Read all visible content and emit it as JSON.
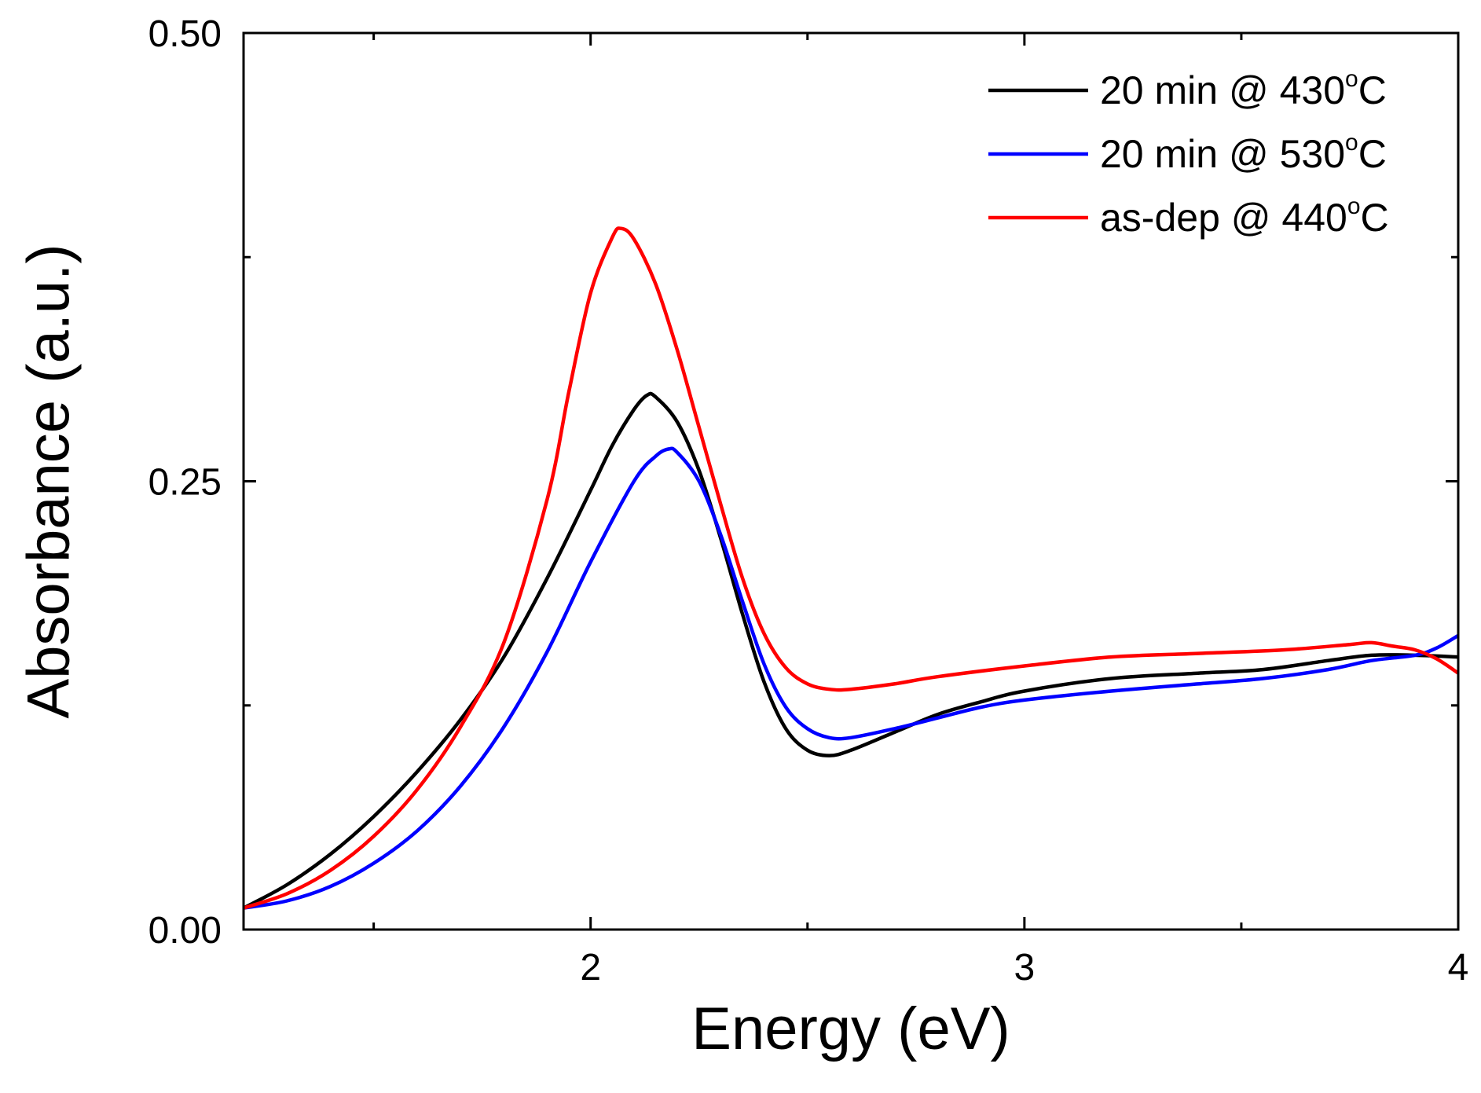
{
  "chart_data": {
    "type": "line",
    "title": "",
    "xlabel": "Energy (eV)",
    "ylabel": "Absorbance (a.u.)",
    "xlim": [
      1.2,
      4.0
    ],
    "ylim": [
      0.0,
      0.5
    ],
    "x_ticks": [
      2,
      3,
      4
    ],
    "x_tick_labels": [
      "2",
      "3",
      "4"
    ],
    "y_ticks": [
      0.0,
      0.25,
      0.5
    ],
    "y_tick_labels": [
      "0.00",
      "0.25",
      "0.50"
    ],
    "grid": false,
    "legend_position": "top-right",
    "series": [
      {
        "name_prefix": "20 min @ 430",
        "name_degree": "o",
        "name_unit": "C",
        "color": "#000000",
        "x": [
          1.2,
          1.3,
          1.4,
          1.5,
          1.6,
          1.7,
          1.8,
          1.9,
          2.0,
          2.05,
          2.1,
          2.13,
          2.15,
          2.2,
          2.25,
          2.3,
          2.35,
          2.4,
          2.45,
          2.5,
          2.55,
          2.6,
          2.7,
          2.8,
          2.9,
          3.0,
          3.2,
          3.4,
          3.55,
          3.7,
          3.8,
          3.9,
          4.0
        ],
        "y": [
          0.012,
          0.025,
          0.042,
          0.063,
          0.088,
          0.117,
          0.152,
          0.196,
          0.245,
          0.27,
          0.29,
          0.298,
          0.297,
          0.283,
          0.256,
          0.218,
          0.176,
          0.138,
          0.112,
          0.1,
          0.097,
          0.1,
          0.11,
          0.12,
          0.127,
          0.133,
          0.14,
          0.143,
          0.145,
          0.15,
          0.153,
          0.153,
          0.152
        ]
      },
      {
        "name_prefix": "20 min @ 530",
        "name_degree": "o",
        "name_unit": "C",
        "color": "#0000ff",
        "x": [
          1.2,
          1.3,
          1.4,
          1.5,
          1.6,
          1.7,
          1.8,
          1.9,
          2.0,
          2.1,
          2.15,
          2.18,
          2.2,
          2.25,
          2.3,
          2.35,
          2.4,
          2.45,
          2.5,
          2.55,
          2.6,
          2.7,
          2.8,
          2.9,
          3.0,
          3.2,
          3.4,
          3.55,
          3.7,
          3.8,
          3.9,
          3.95,
          4.0
        ],
        "y": [
          0.012,
          0.016,
          0.024,
          0.037,
          0.055,
          0.08,
          0.113,
          0.155,
          0.205,
          0.25,
          0.264,
          0.268,
          0.266,
          0.25,
          0.22,
          0.183,
          0.148,
          0.124,
          0.112,
          0.107,
          0.107,
          0.112,
          0.118,
          0.124,
          0.128,
          0.133,
          0.137,
          0.14,
          0.145,
          0.15,
          0.153,
          0.157,
          0.164
        ]
      },
      {
        "name_prefix": "as-dep @ 440",
        "name_degree": "o",
        "name_unit": "C",
        "color": "#ff0000",
        "x": [
          1.2,
          1.3,
          1.4,
          1.5,
          1.6,
          1.7,
          1.8,
          1.9,
          1.95,
          2.0,
          2.05,
          2.07,
          2.1,
          2.15,
          2.2,
          2.25,
          2.3,
          2.35,
          2.4,
          2.45,
          2.5,
          2.55,
          2.6,
          2.7,
          2.8,
          3.0,
          3.2,
          3.4,
          3.6,
          3.75,
          3.8,
          3.85,
          3.9,
          3.95,
          4.0
        ],
        "y": [
          0.012,
          0.02,
          0.033,
          0.052,
          0.078,
          0.113,
          0.16,
          0.24,
          0.3,
          0.355,
          0.386,
          0.391,
          0.385,
          0.36,
          0.323,
          0.28,
          0.237,
          0.196,
          0.165,
          0.146,
          0.137,
          0.134,
          0.134,
          0.137,
          0.141,
          0.147,
          0.152,
          0.154,
          0.156,
          0.159,
          0.16,
          0.158,
          0.156,
          0.151,
          0.143
        ]
      }
    ]
  }
}
